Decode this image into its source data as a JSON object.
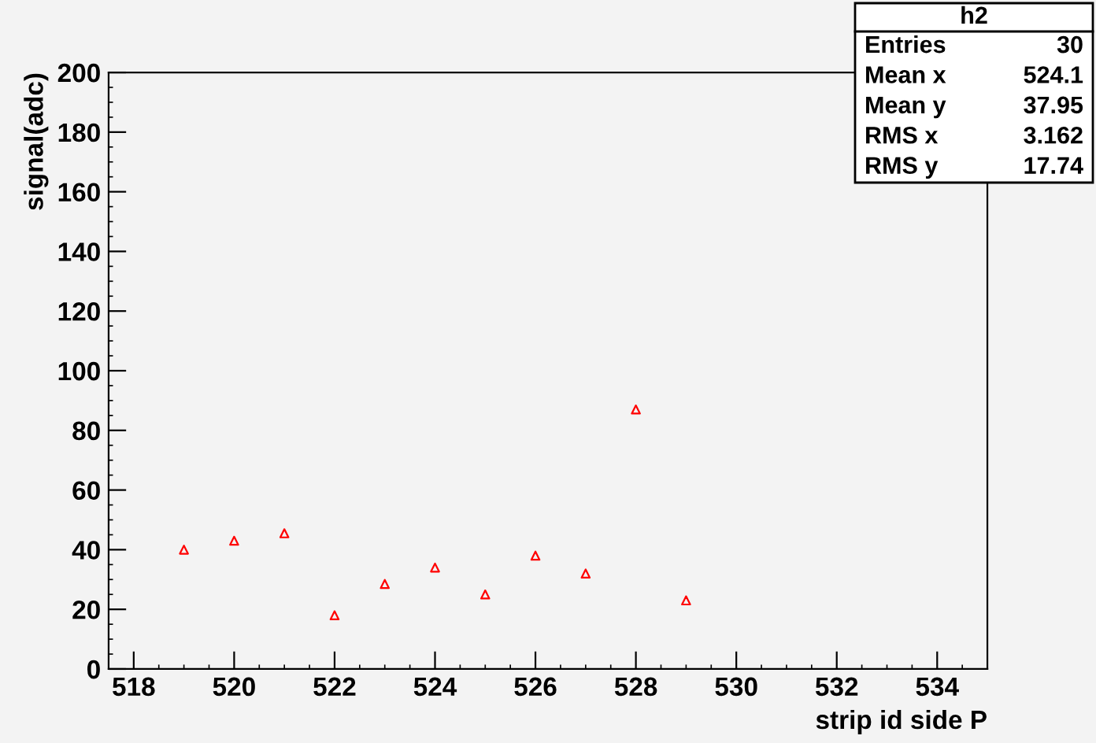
{
  "chart_data": {
    "type": "scatter",
    "xlabel": "strip id side P",
    "ylabel": "signal(adc)",
    "x": [
      519,
      520,
      521,
      522,
      523,
      524,
      525,
      526,
      527,
      528,
      529
    ],
    "series": [
      {
        "color": "#ff0000",
        "values": [
          40,
          43,
          45.5,
          18,
          28.5,
          34,
          25,
          38,
          32,
          87,
          23
        ]
      }
    ],
    "xlim": [
      517.5,
      535
    ],
    "xticks": [
      518,
      520,
      522,
      524,
      526,
      528,
      530,
      532,
      534
    ],
    "ylim": [
      0,
      200
    ],
    "yticks": [
      0,
      20,
      40,
      60,
      80,
      100,
      120,
      140,
      160,
      180,
      200
    ],
    "marker": "triangle",
    "grid": false,
    "legend": false,
    "annotations": [
      "h2",
      "Entries",
      "30",
      "Mean x",
      "524.1",
      "Mean y",
      "37.95",
      "RMS x",
      "3.162",
      "RMS y",
      "17.74"
    ]
  }
}
